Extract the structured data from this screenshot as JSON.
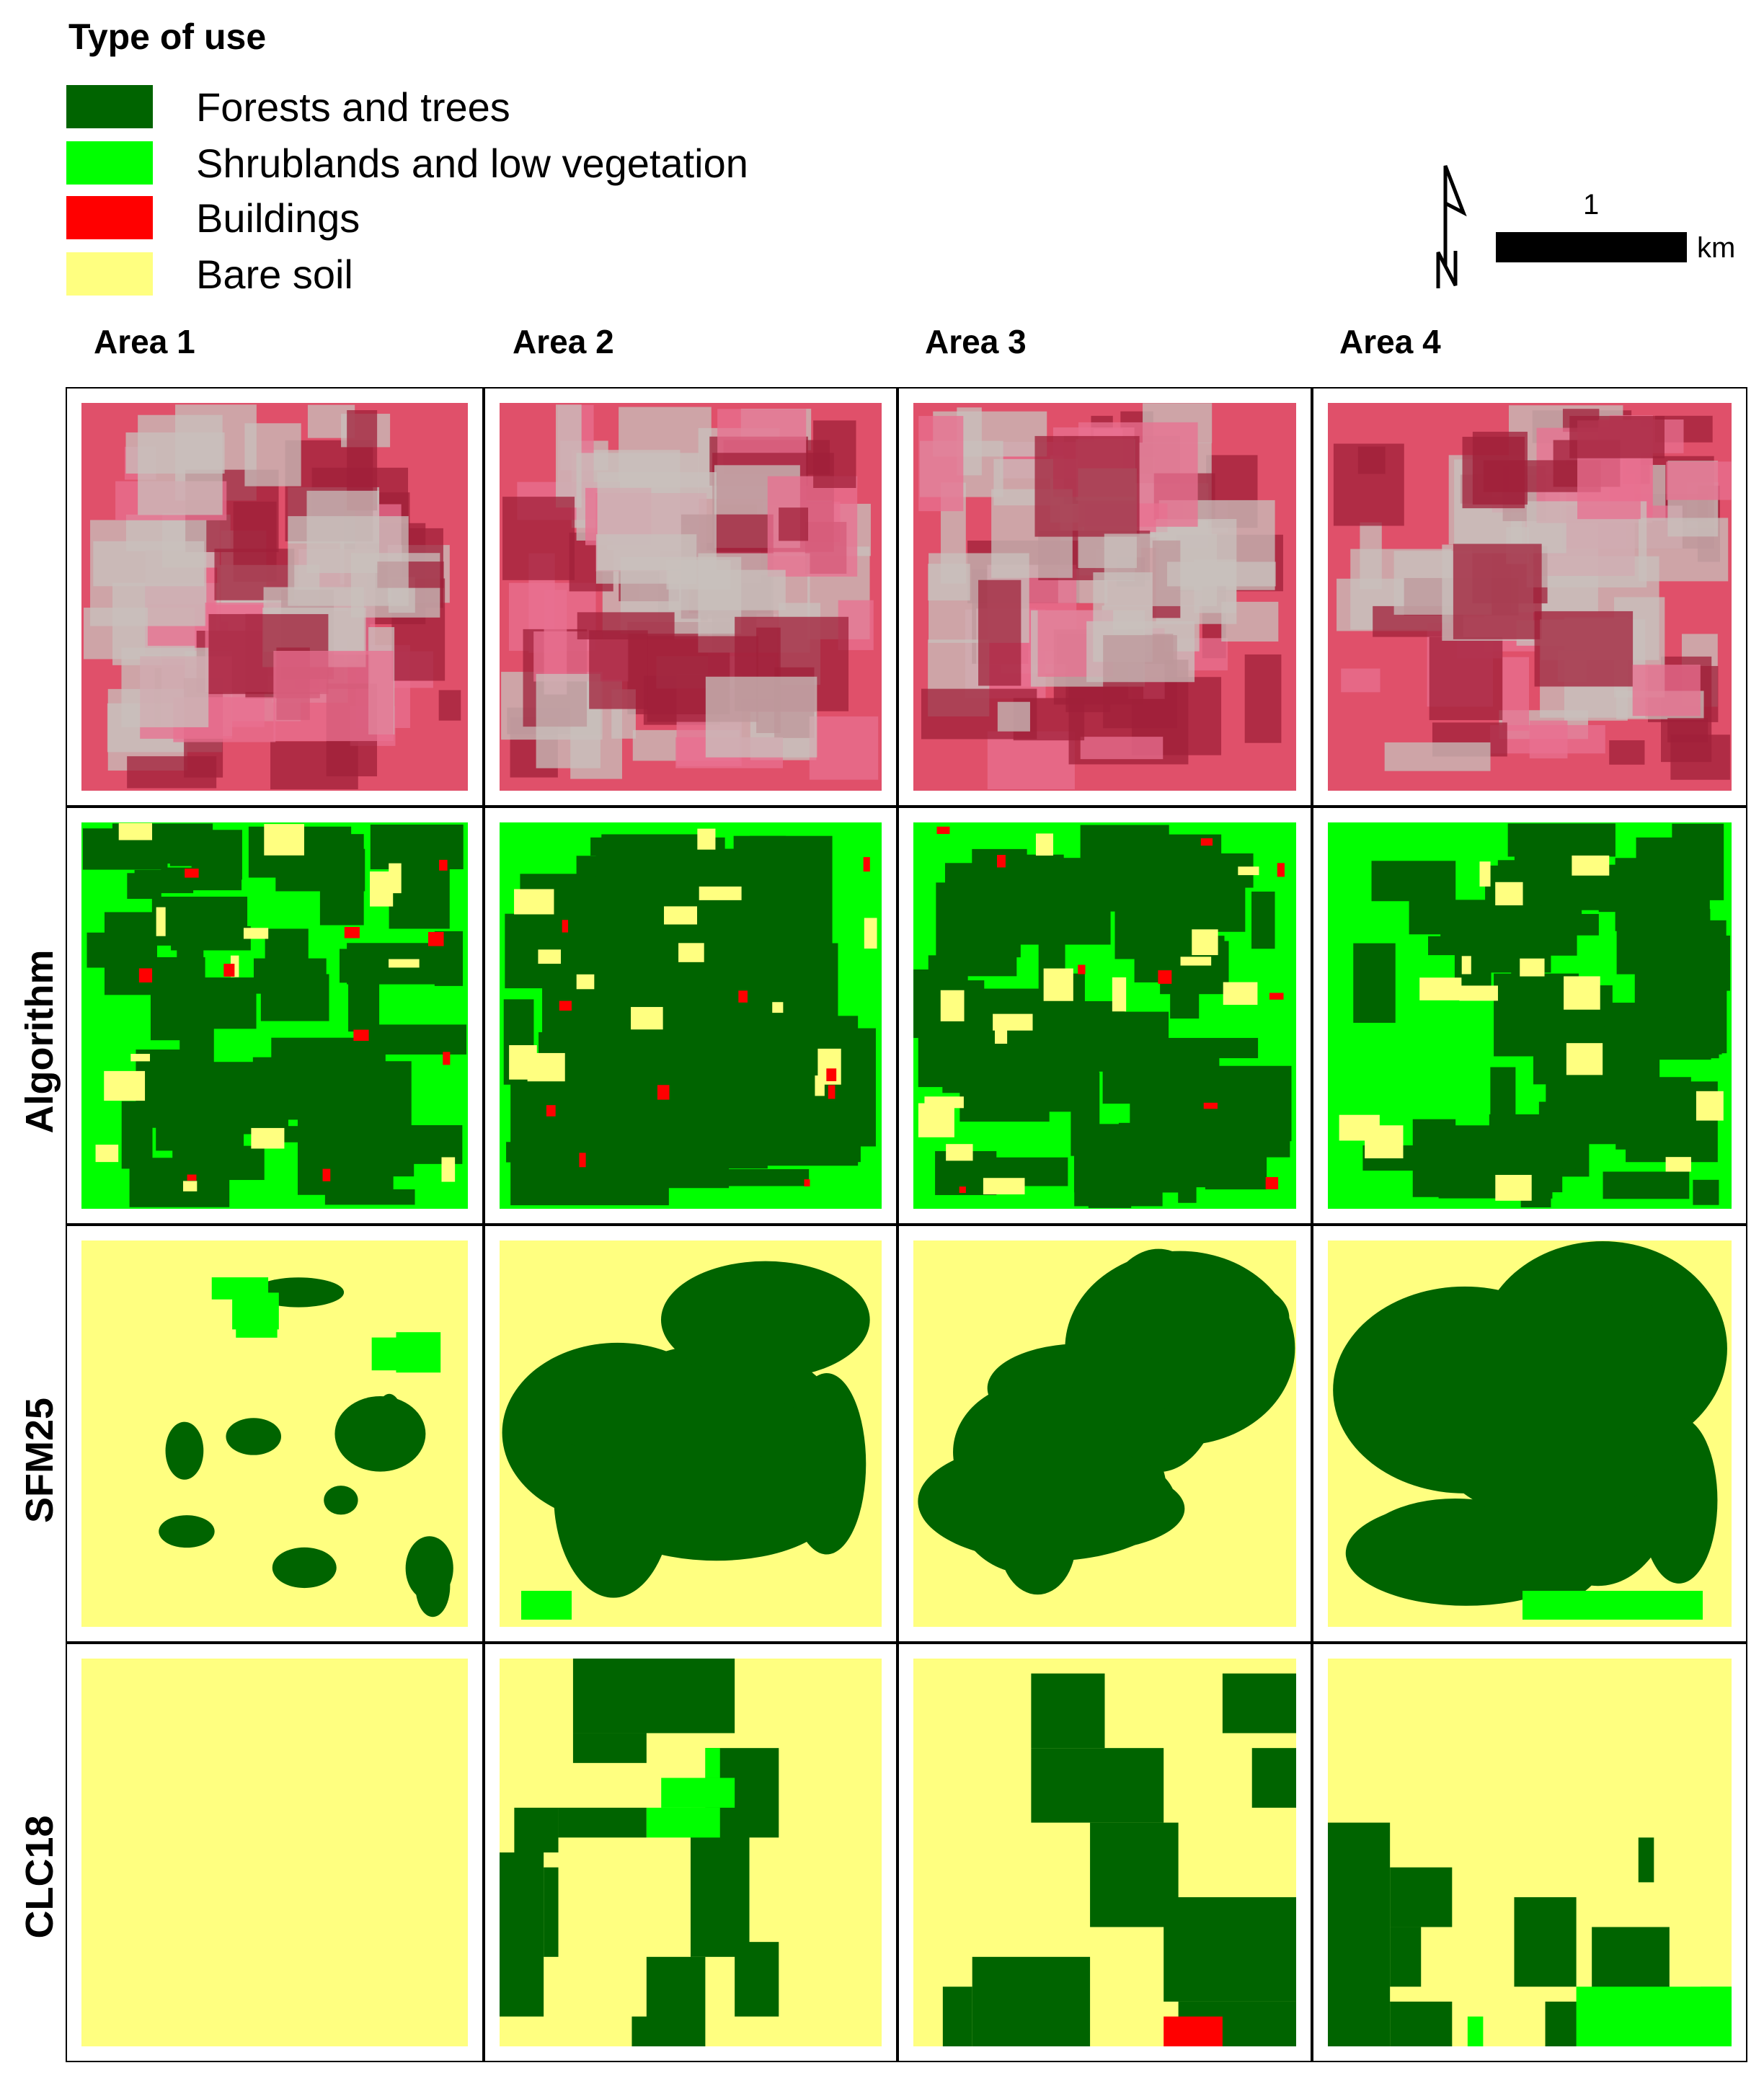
{
  "legend": {
    "title": "Type of use",
    "items": [
      {
        "label": "Forests and trees",
        "color": "#006400"
      },
      {
        "label": "Shrublands and low vegetation",
        "color": "#00ff00"
      },
      {
        "label": "Buildings",
        "color": "#ff0000"
      },
      {
        "label": "Bare soil",
        "color": "#ffff80"
      }
    ]
  },
  "scale": {
    "value": "1",
    "unit": "km"
  },
  "north_arrow": {
    "label": "N",
    "icon": "north-arrow-icon"
  },
  "columns": [
    "Area 1",
    "Area 2",
    "Area 3",
    "Area 4"
  ],
  "rows": [
    "",
    "Algorithm",
    "SFM25",
    "CLC18"
  ],
  "image_row_colors": {
    "base": "#e0506a",
    "dark": "#a0203a",
    "light": "#c8c0bc"
  },
  "clc18": {
    "grid_size": 26,
    "areas": [
      {
        "forest": [],
        "shrub": [],
        "buildings": []
      },
      {
        "forest": [
          [
            5,
            0,
            16,
            5
          ],
          [
            5,
            5,
            10,
            7
          ],
          [
            1,
            10,
            4,
            13
          ],
          [
            4,
            10,
            10,
            12
          ],
          [
            0,
            13,
            3,
            24
          ],
          [
            3,
            14,
            4,
            20
          ],
          [
            14,
            6,
            19,
            12
          ],
          [
            13,
            10,
            17,
            20
          ],
          [
            10,
            20,
            14,
            26
          ],
          [
            16,
            19,
            19,
            24
          ],
          [
            9,
            24,
            11,
            26
          ]
        ],
        "shrub": [
          [
            11,
            8,
            16,
            10
          ],
          [
            10,
            10,
            15,
            12
          ],
          [
            14,
            6,
            15,
            8
          ]
        ],
        "buildings": []
      },
      {
        "forest": [
          [
            8,
            1,
            13,
            6
          ],
          [
            8,
            6,
            17,
            11
          ],
          [
            12,
            11,
            18,
            18
          ],
          [
            17,
            16,
            26,
            23
          ],
          [
            21,
            1,
            26,
            5
          ],
          [
            4,
            20,
            12,
            26
          ],
          [
            2,
            22,
            4,
            26
          ],
          [
            18,
            23,
            26,
            26
          ],
          [
            23,
            6,
            26,
            10
          ]
        ],
        "shrub": [],
        "buildings": [
          [
            17,
            24,
            21,
            26
          ]
        ]
      },
      {
        "forest": [
          [
            0,
            11,
            4,
            26
          ],
          [
            4,
            14,
            8,
            18
          ],
          [
            4,
            18,
            6,
            22
          ],
          [
            12,
            16,
            16,
            22
          ],
          [
            17,
            18,
            22,
            23
          ],
          [
            14,
            23,
            18,
            26
          ],
          [
            4,
            23,
            8,
            26
          ],
          [
            20,
            12,
            21,
            15
          ]
        ],
        "shrub": [
          [
            16,
            22,
            26,
            26
          ],
          [
            9,
            24,
            10,
            26
          ],
          [
            24,
            22,
            26,
            24
          ]
        ],
        "buildings": []
      }
    ]
  }
}
